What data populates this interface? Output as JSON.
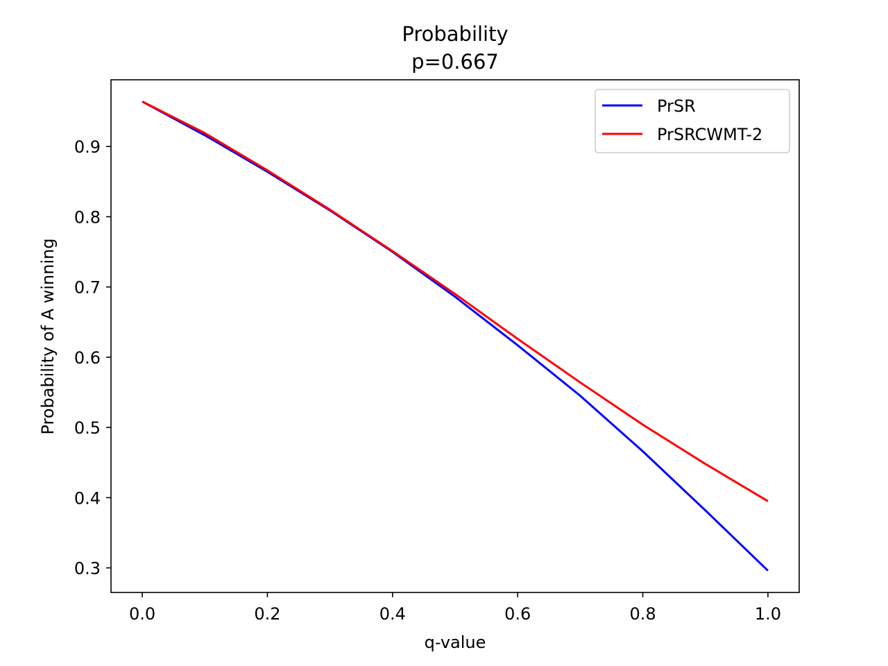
{
  "chart_data": {
    "type": "line",
    "title": "Probability",
    "subtitle": "p=0.667",
    "xlabel": "q-value",
    "ylabel": "Probability of A winning",
    "xlim": [
      -0.05,
      1.05
    ],
    "ylim": [
      0.265,
      0.995
    ],
    "x_ticks": [
      "0.0",
      "0.2",
      "0.4",
      "0.6",
      "0.8",
      "1.0"
    ],
    "y_ticks": [
      "0.3",
      "0.4",
      "0.5",
      "0.6",
      "0.7",
      "0.8",
      "0.9"
    ],
    "grid": false,
    "legend_position": "top-right",
    "x": [
      0.0,
      0.1,
      0.2,
      0.3,
      0.4,
      0.5,
      0.6,
      0.7,
      0.8,
      0.9,
      1.0
    ],
    "series": [
      {
        "name": "PrSR",
        "color": "#0000ff",
        "values": [
          0.964,
          0.916,
          0.864,
          0.809,
          0.75,
          0.686,
          0.617,
          0.545,
          0.466,
          0.382,
          0.296
        ]
      },
      {
        "name": "PrSRCWMT-2",
        "color": "#ff0000",
        "values": [
          0.964,
          0.919,
          0.866,
          0.81,
          0.751,
          0.69,
          0.626,
          0.564,
          0.504,
          0.448,
          0.395
        ]
      }
    ]
  }
}
